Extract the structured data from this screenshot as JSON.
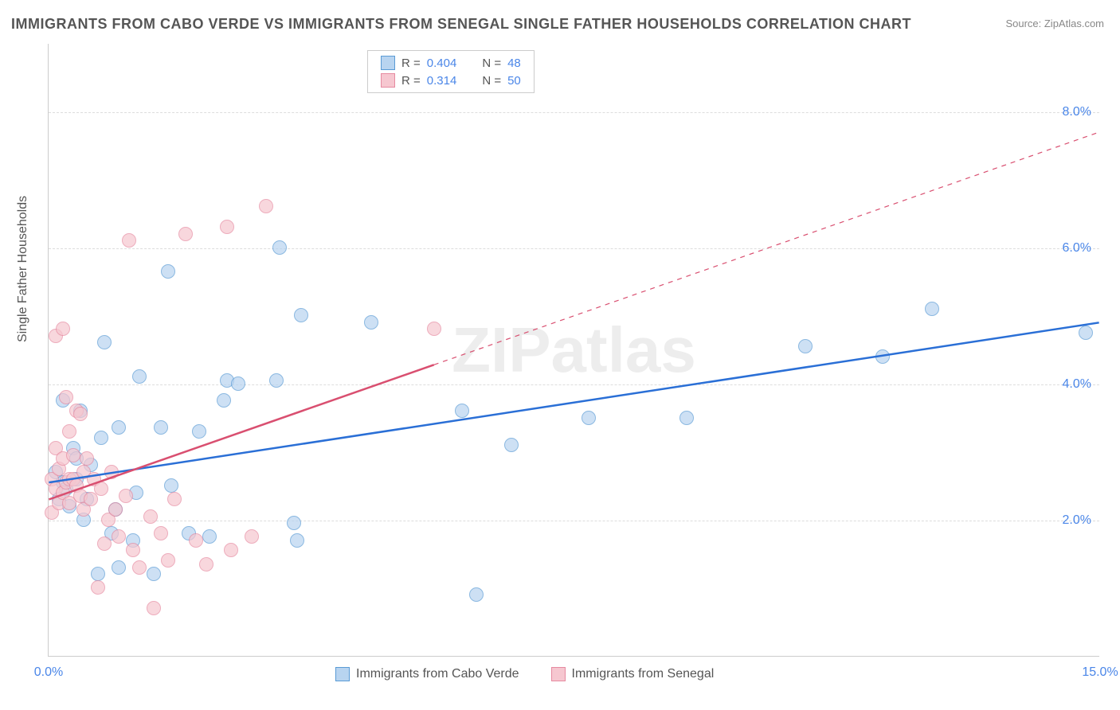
{
  "title": "IMMIGRANTS FROM CABO VERDE VS IMMIGRANTS FROM SENEGAL SINGLE FATHER HOUSEHOLDS CORRELATION CHART",
  "source": "Source: ZipAtlas.com",
  "watermark": "ZIPatlas",
  "y_axis_title": "Single Father Households",
  "chart": {
    "type": "scatter",
    "xlim": [
      0,
      15
    ],
    "ylim": [
      0,
      9
    ],
    "x_ticks": [
      {
        "val": 0.0,
        "label": "0.0%"
      },
      {
        "val": 15.0,
        "label": "15.0%"
      }
    ],
    "y_ticks": [
      {
        "val": 2.0,
        "label": "2.0%"
      },
      {
        "val": 4.0,
        "label": "4.0%"
      },
      {
        "val": 6.0,
        "label": "6.0%"
      },
      {
        "val": 8.0,
        "label": "8.0%"
      }
    ],
    "grid_color": "#dddddd",
    "background": "#ffffff",
    "marker_radius": 9,
    "marker_opacity": 0.7
  },
  "series": [
    {
      "key": "cabo_verde",
      "name": "Immigrants from Cabo Verde",
      "fill": "#b8d4f0",
      "stroke": "#5a9bd5",
      "line_color": "#2a6fd6",
      "line_width": 2.5,
      "R": "0.404",
      "N": "48",
      "trend": {
        "x1": 0.0,
        "y1": 2.55,
        "x2": 15.0,
        "y2": 4.9,
        "dashed_from_x": null
      },
      "points": [
        [
          0.1,
          2.7
        ],
        [
          0.15,
          2.3
        ],
        [
          0.2,
          2.55
        ],
        [
          0.2,
          3.75
        ],
        [
          0.25,
          2.45
        ],
        [
          0.3,
          2.2
        ],
        [
          0.35,
          3.05
        ],
        [
          0.4,
          2.9
        ],
        [
          0.4,
          2.6
        ],
        [
          0.45,
          3.6
        ],
        [
          0.5,
          2.0
        ],
        [
          0.55,
          2.3
        ],
        [
          0.6,
          2.8
        ],
        [
          0.7,
          1.2
        ],
        [
          0.75,
          3.2
        ],
        [
          0.8,
          4.6
        ],
        [
          0.9,
          1.8
        ],
        [
          0.95,
          2.15
        ],
        [
          1.0,
          1.3
        ],
        [
          1.0,
          3.35
        ],
        [
          1.2,
          1.7
        ],
        [
          1.25,
          2.4
        ],
        [
          1.3,
          4.1
        ],
        [
          1.5,
          1.2
        ],
        [
          1.6,
          3.35
        ],
        [
          1.7,
          5.65
        ],
        [
          1.75,
          2.5
        ],
        [
          2.0,
          1.8
        ],
        [
          2.15,
          3.3
        ],
        [
          2.3,
          1.75
        ],
        [
          2.5,
          3.75
        ],
        [
          2.55,
          4.05
        ],
        [
          2.7,
          4.0
        ],
        [
          3.25,
          4.05
        ],
        [
          3.3,
          6.0
        ],
        [
          3.5,
          1.95
        ],
        [
          3.55,
          1.7
        ],
        [
          3.6,
          5.0
        ],
        [
          4.6,
          4.9
        ],
        [
          5.9,
          3.6
        ],
        [
          6.1,
          0.9
        ],
        [
          6.6,
          3.1
        ],
        [
          7.7,
          3.5
        ],
        [
          9.1,
          3.5
        ],
        [
          10.8,
          4.55
        ],
        [
          11.9,
          4.4
        ],
        [
          12.6,
          5.1
        ],
        [
          14.8,
          4.75
        ]
      ]
    },
    {
      "key": "senegal",
      "name": "Immigrants from Senegal",
      "fill": "#f6c7d0",
      "stroke": "#e68aa0",
      "line_color": "#d94f70",
      "line_width": 2.5,
      "R": "0.314",
      "N": "50",
      "trend": {
        "x1": 0.0,
        "y1": 2.3,
        "x2": 15.0,
        "y2": 7.7,
        "dashed_from_x": 5.5
      },
      "points": [
        [
          0.05,
          2.1
        ],
        [
          0.05,
          2.6
        ],
        [
          0.1,
          3.05
        ],
        [
          0.1,
          2.45
        ],
        [
          0.1,
          4.7
        ],
        [
          0.15,
          2.75
        ],
        [
          0.15,
          2.25
        ],
        [
          0.2,
          2.9
        ],
        [
          0.2,
          4.8
        ],
        [
          0.2,
          2.4
        ],
        [
          0.25,
          3.8
        ],
        [
          0.25,
          2.55
        ],
        [
          0.3,
          2.6
        ],
        [
          0.3,
          3.3
        ],
        [
          0.3,
          2.25
        ],
        [
          0.35,
          2.95
        ],
        [
          0.35,
          2.6
        ],
        [
          0.4,
          3.6
        ],
        [
          0.4,
          2.5
        ],
        [
          0.45,
          3.55
        ],
        [
          0.45,
          2.35
        ],
        [
          0.5,
          2.7
        ],
        [
          0.5,
          2.15
        ],
        [
          0.55,
          2.9
        ],
        [
          0.6,
          2.3
        ],
        [
          0.65,
          2.6
        ],
        [
          0.7,
          1.0
        ],
        [
          0.75,
          2.45
        ],
        [
          0.8,
          1.65
        ],
        [
          0.85,
          2.0
        ],
        [
          0.9,
          2.7
        ],
        [
          0.95,
          2.15
        ],
        [
          1.0,
          1.75
        ],
        [
          1.1,
          2.35
        ],
        [
          1.15,
          6.1
        ],
        [
          1.2,
          1.55
        ],
        [
          1.3,
          1.3
        ],
        [
          1.45,
          2.05
        ],
        [
          1.5,
          0.7
        ],
        [
          1.6,
          1.8
        ],
        [
          1.7,
          1.4
        ],
        [
          1.8,
          2.3
        ],
        [
          1.95,
          6.2
        ],
        [
          2.1,
          1.7
        ],
        [
          2.25,
          1.35
        ],
        [
          2.55,
          6.3
        ],
        [
          2.6,
          1.55
        ],
        [
          2.9,
          1.75
        ],
        [
          3.1,
          6.6
        ],
        [
          5.5,
          4.8
        ]
      ]
    }
  ],
  "legend_bottom": [
    {
      "label": "Immigrants from Cabo Verde",
      "fill": "#b8d4f0",
      "stroke": "#5a9bd5"
    },
    {
      "label": "Immigrants from Senegal",
      "fill": "#f6c7d0",
      "stroke": "#e68aa0"
    }
  ]
}
